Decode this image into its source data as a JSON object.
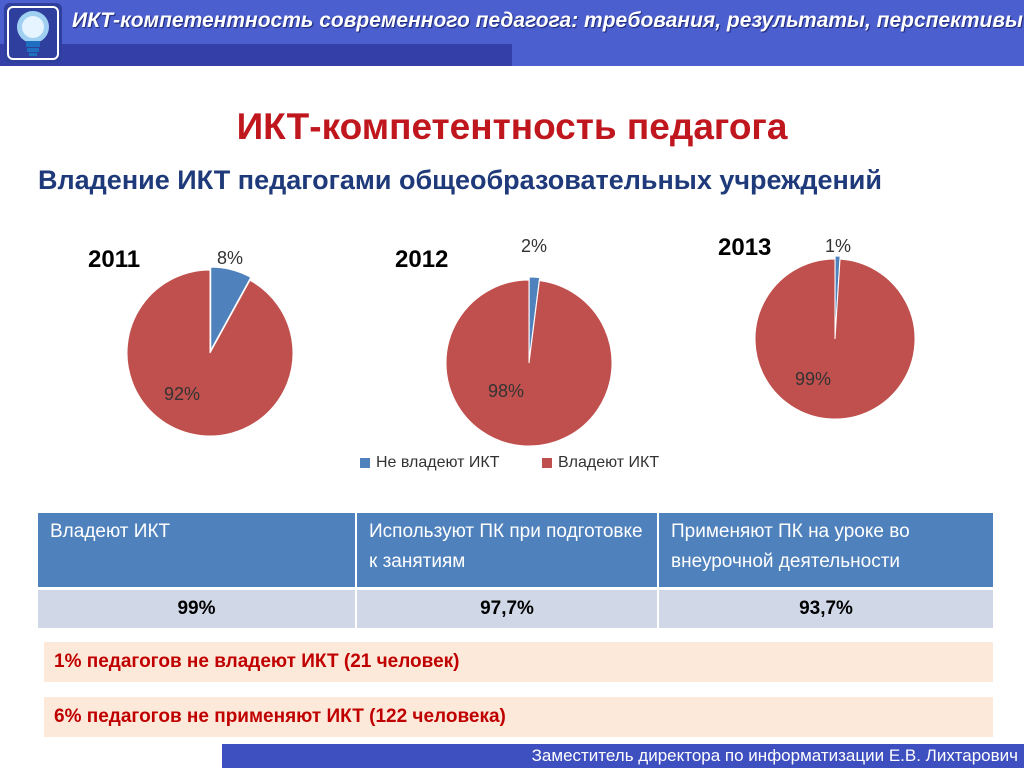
{
  "header": {
    "title": "ИКТ-компетентность современного педагога: требования, результаты, перспективы",
    "logo_icon": "lightbulb-logo-icon"
  },
  "main_title": "ИКТ-компетентность педагога",
  "subtitle": "Владение ИКТ педагогами общеобразовательных учреждений",
  "chart_data": [
    {
      "type": "pie",
      "title": "2011",
      "categories": [
        "Не владеют ИКТ",
        "Владеют ИКТ"
      ],
      "values": [
        8,
        92
      ],
      "labels": [
        "8%",
        "92%"
      ],
      "colors": [
        "#4f81bd",
        "#c0504d"
      ]
    },
    {
      "type": "pie",
      "title": "2012",
      "categories": [
        "Не владеют ИКТ",
        "Владеют ИКТ"
      ],
      "values": [
        2,
        98
      ],
      "labels": [
        "2%",
        "98%"
      ],
      "colors": [
        "#4f81bd",
        "#c0504d"
      ]
    },
    {
      "type": "pie",
      "title": "2013",
      "categories": [
        "Не владеют ИКТ",
        "Владеют ИКТ"
      ],
      "values": [
        1,
        99
      ],
      "labels": [
        "1%",
        "99%"
      ],
      "colors": [
        "#4f81bd",
        "#c0504d"
      ]
    }
  ],
  "legend": {
    "placement": "bottom",
    "items": [
      {
        "label": "Не владеют ИКТ",
        "color": "#4f81bd"
      },
      {
        "label": "Владеют ИКТ",
        "color": "#c0504d"
      }
    ]
  },
  "table": {
    "headers": [
      "Владеют ИКТ",
      "Используют ПК при подготовке к занятиям",
      "Применяют ПК на уроке во внеурочной деятельности"
    ],
    "values": [
      "99%",
      "97,7%",
      "93,7%"
    ]
  },
  "notes": [
    "1% педагогов не владеют ИКТ (21 человек)",
    "6% педагогов не применяют ИКТ (122 человека)"
  ],
  "footer": {
    "text": "Заместитель директора по информатизации Е.В. Лихтарович"
  }
}
